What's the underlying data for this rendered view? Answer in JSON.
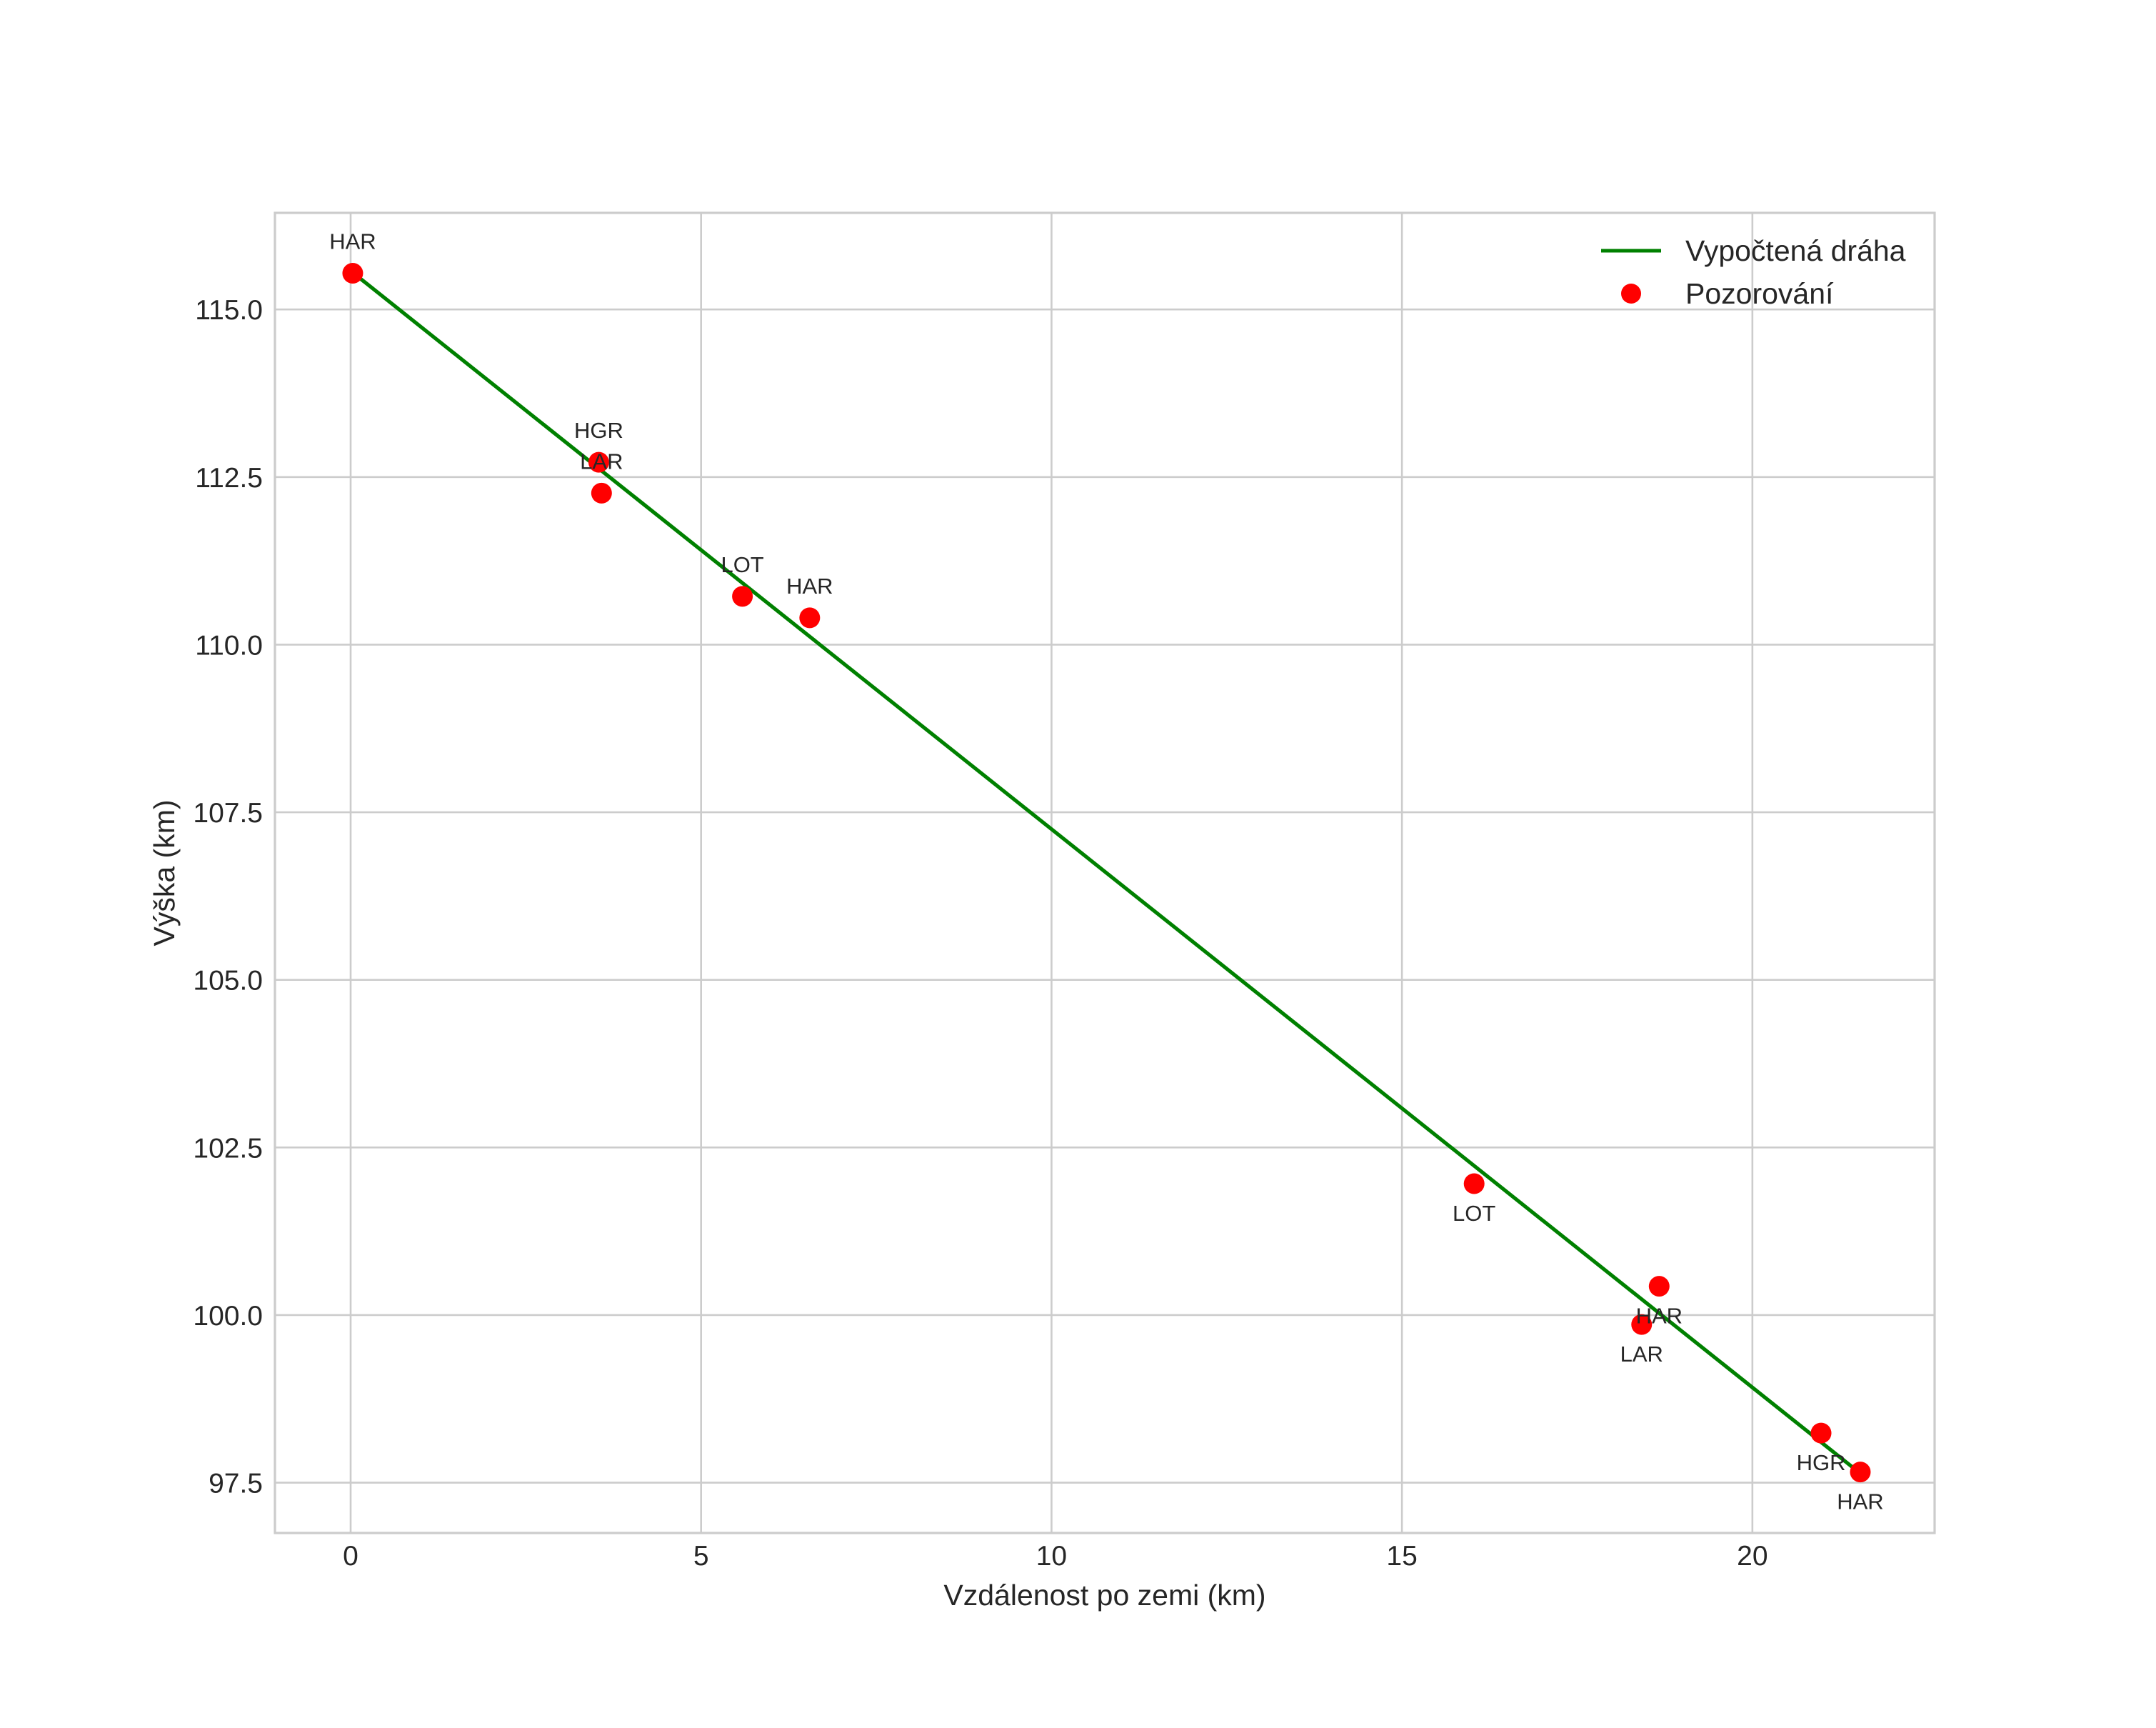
{
  "chart_data": {
    "type": "line",
    "title": "",
    "xlabel": "Vzdálenost po zemi (km)",
    "ylabel": "Výška (km)",
    "xlim": [
      -1.08,
      22.6
    ],
    "ylim": [
      96.75,
      116.44
    ],
    "x_ticks": [
      0,
      5,
      10,
      15,
      20
    ],
    "x_tick_labels": [
      "0",
      "5",
      "10",
      "15",
      "20"
    ],
    "y_ticks": [
      97.5,
      100.0,
      102.5,
      105.0,
      107.5,
      110.0,
      112.5,
      115.0
    ],
    "y_tick_labels": [
      "97.5",
      "100.0",
      "102.5",
      "105.0",
      "107.5",
      "110.0",
      "112.5",
      "115.0"
    ],
    "grid": true,
    "legend_position": "upper right",
    "legend": [
      {
        "label": "Vypočtená dráha",
        "kind": "line",
        "color": "#008000"
      },
      {
        "label": "Pozorování",
        "kind": "marker",
        "color": "#ff0000"
      }
    ],
    "series": [
      {
        "name": "Vypočtená dráha",
        "type": "line",
        "color": "#008000",
        "x": [
          0.03,
          21.43
        ],
        "y": [
          115.55,
          97.73
        ]
      },
      {
        "name": "Pozorování",
        "type": "scatter",
        "color": "#ff0000",
        "points": [
          {
            "x": 0.03,
            "y": 115.54,
            "label": "HAR",
            "label_pos": "above"
          },
          {
            "x": 3.54,
            "y": 112.72,
            "label": "HGR",
            "label_pos": "above"
          },
          {
            "x": 3.58,
            "y": 112.26,
            "label": "LAR",
            "label_pos": "above"
          },
          {
            "x": 5.59,
            "y": 110.72,
            "label": "LOT",
            "label_pos": "above"
          },
          {
            "x": 6.55,
            "y": 110.4,
            "label": "HAR",
            "label_pos": "above"
          },
          {
            "x": 16.03,
            "y": 101.96,
            "label": "LOT",
            "label_pos": "below"
          },
          {
            "x": 18.67,
            "y": 100.43,
            "label": "HAR",
            "label_pos": "below"
          },
          {
            "x": 18.42,
            "y": 99.86,
            "label": "LAR",
            "label_pos": "below"
          },
          {
            "x": 20.98,
            "y": 98.24,
            "label": "HGR",
            "label_pos": "below"
          },
          {
            "x": 21.54,
            "y": 97.66,
            "label": "HAR",
            "label_pos": "below"
          }
        ]
      }
    ]
  },
  "style": {
    "grid_color": "#cccccc",
    "spine_color": "#cccccc",
    "text_color": "#262626",
    "background": "#ffffff"
  }
}
